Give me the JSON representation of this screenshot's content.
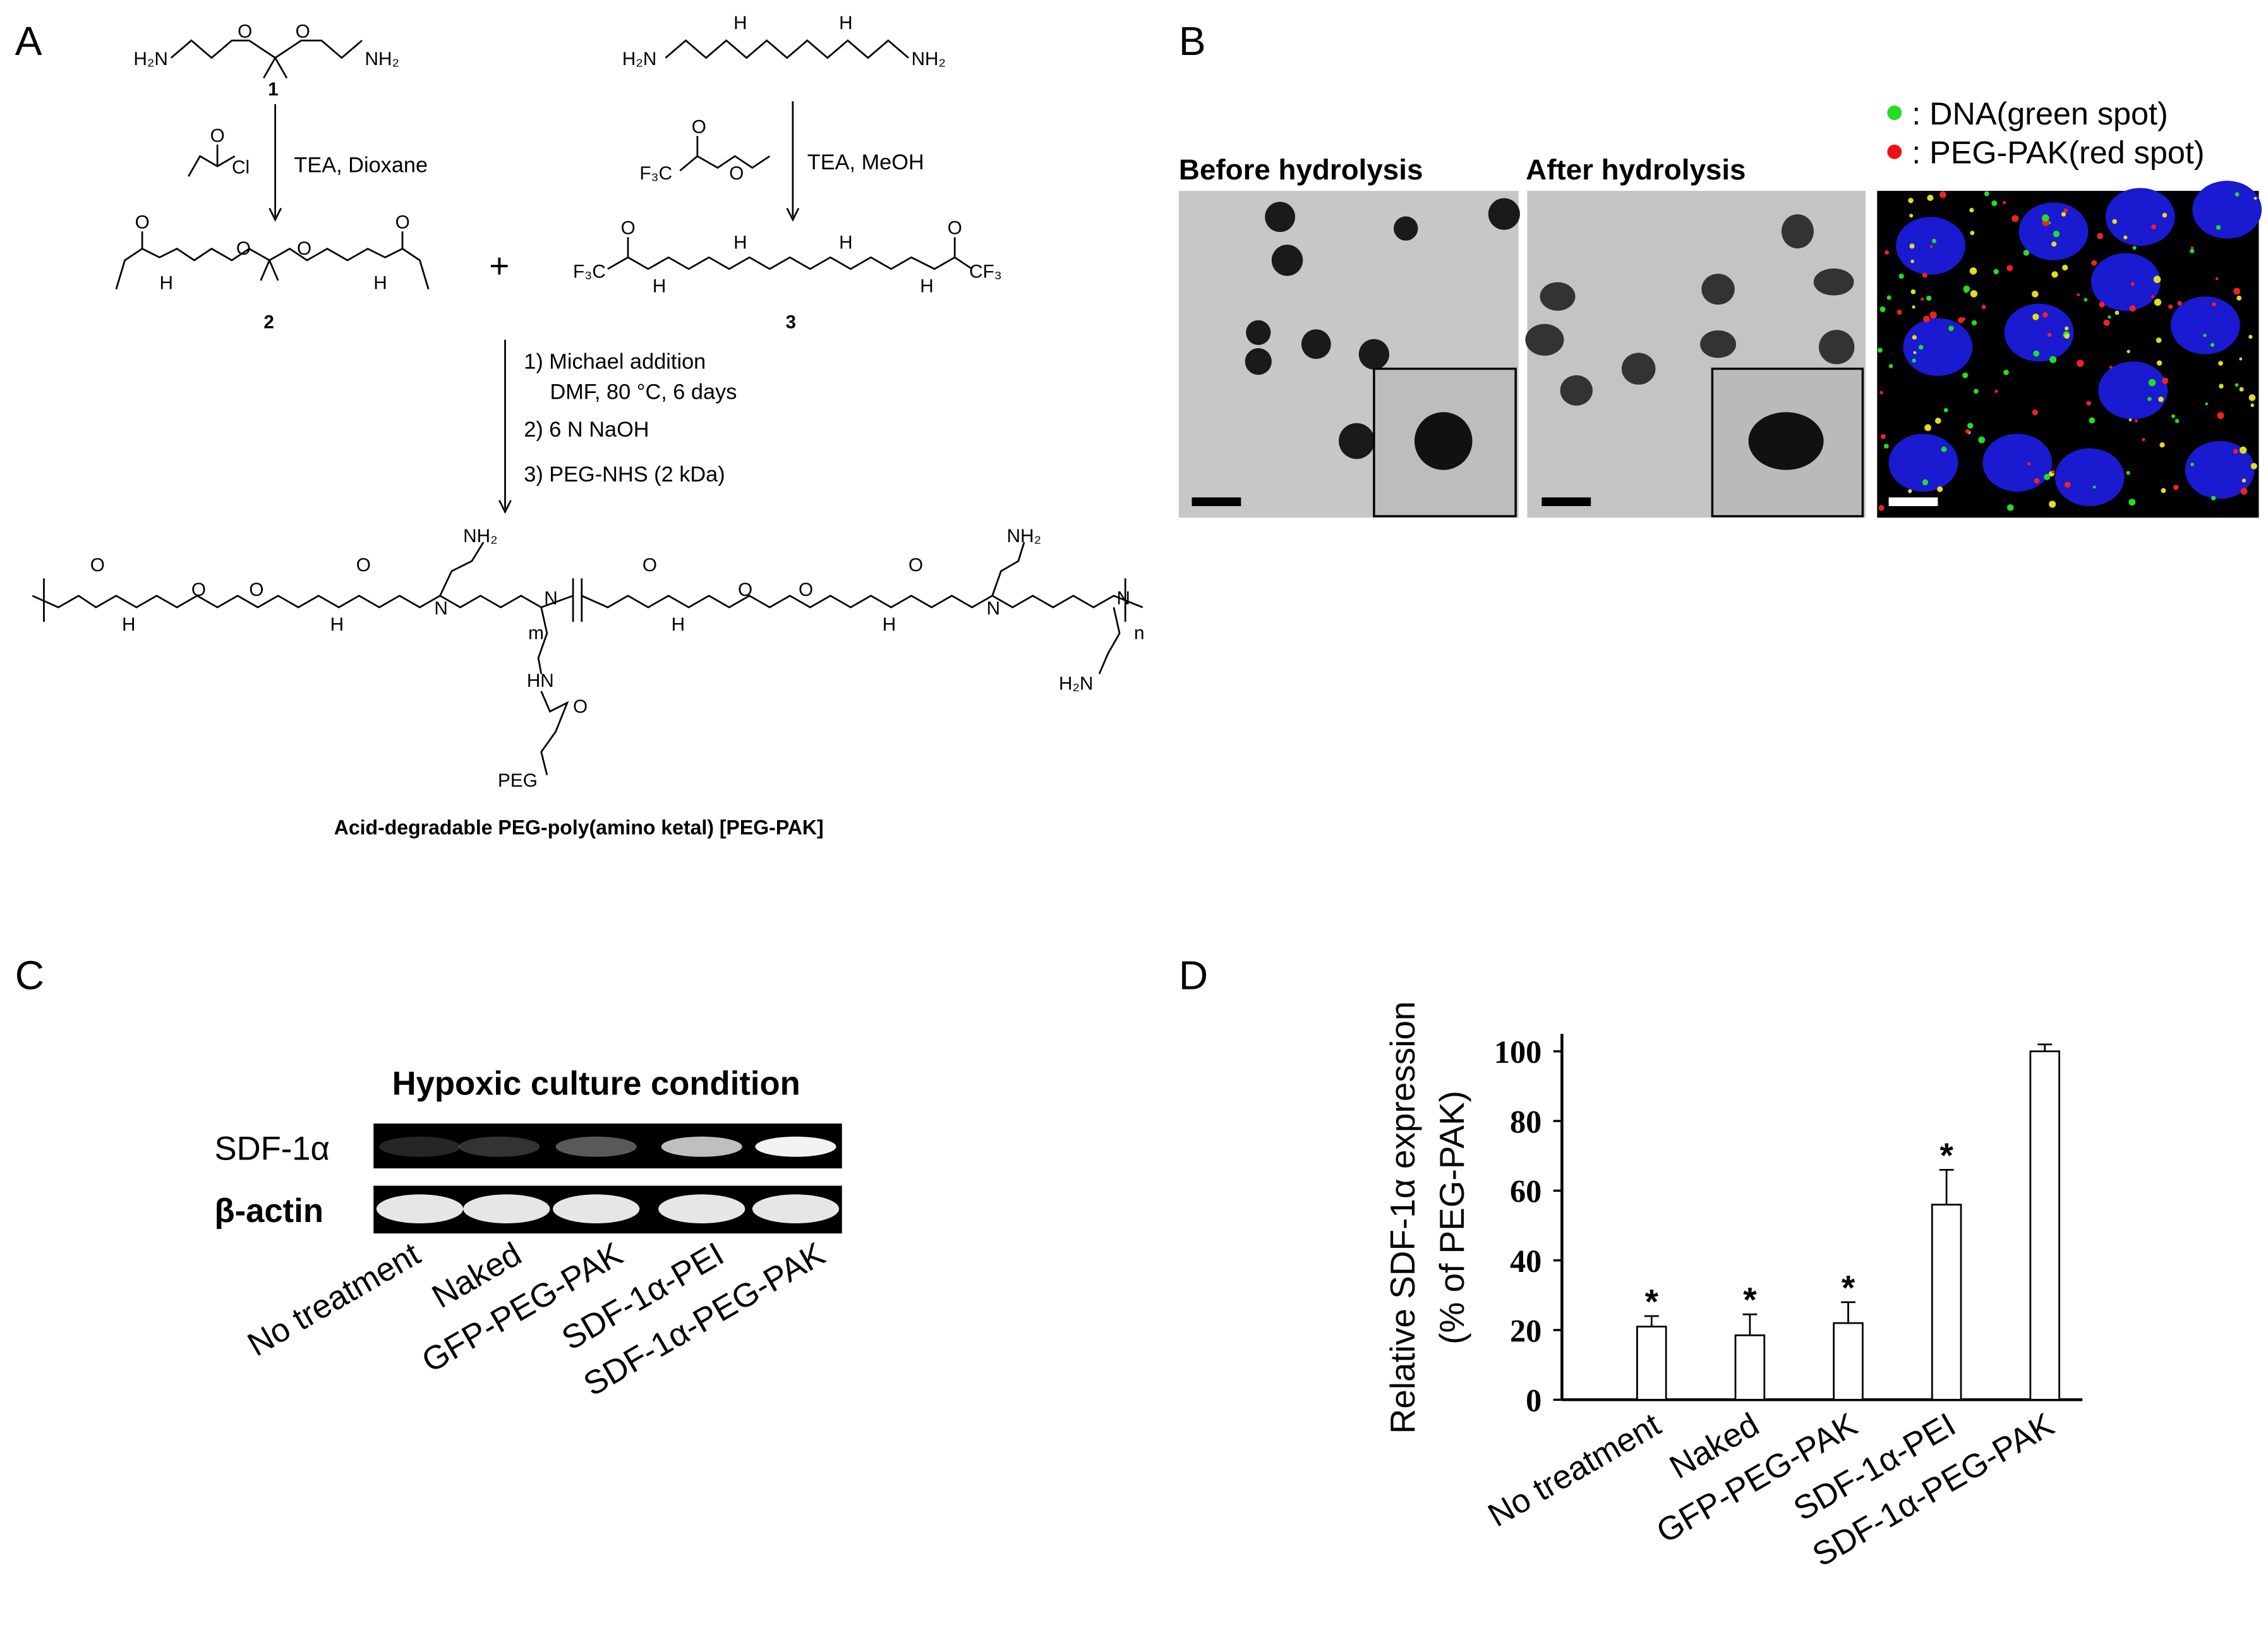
{
  "panel_labels": [
    "A",
    "B",
    "C",
    "D"
  ],
  "scheme": {
    "c1_left": "H₂N",
    "c1_right": "NH₂",
    "c1_o1": "O",
    "c1_o2": "O",
    "c1_num": "1",
    "acyl_cl": "Cl",
    "acyl_o": "O",
    "step1_reagents": "TEA, Dioxane",
    "c2_o1": "O",
    "c2_o2": "O",
    "c2_o3": "O",
    "c2_o4": "O",
    "c2_h1": "H",
    "c2_h2": "H",
    "c2_num": "2",
    "plus": "+",
    "amine_left": "H₂N",
    "amine_right": "NH₂",
    "amine_h1": "H",
    "amine_h2": "H",
    "tfa_f3c": "F₃C",
    "tfa_o1": "O",
    "tfa_o2": "O",
    "step2_reagents": "TEA, MeOH",
    "c3_f3c": "F₃C",
    "c3_cf3": "CF₃",
    "c3_o1": "O",
    "c3_o2": "O",
    "c3_h1": "H",
    "c3_h2": "H",
    "c3_h3": "H",
    "c3_h4": "H",
    "c3_num": "3",
    "steps": [
      "1) Michael addition",
      "DMF, 80 °C, 6 days",
      "2) 6 N NaOH",
      "3) PEG-NHS (2 kDa)"
    ],
    "poly_nh2_1": "NH₂",
    "poly_n1": "N",
    "poly_n2": "N",
    "poly_m": "m",
    "poly_hn": "HN",
    "poly_o_side": "O",
    "poly_peg": "PEG",
    "poly_nh2_2": "NH₂",
    "poly_n3": "N",
    "poly_n4": "N",
    "poly_h2n": "H₂N",
    "poly_n": "n",
    "poly_h": [
      "H",
      "H",
      "H",
      "H"
    ],
    "poly_o": [
      "O",
      "O",
      "O",
      "O",
      "O",
      "O",
      "O",
      "O"
    ],
    "product_name": "Acid-degradable PEG-poly(amino ketal) [PEG-PAK]"
  },
  "micrographs": {
    "before": "Before hydrolysis",
    "after": "After hydrolysis",
    "legend": [
      ": DNA(green spot)",
      ": PEG-PAK(red spot)"
    ],
    "legend_colors": [
      "#22dd22",
      "#ee1111"
    ]
  },
  "blot": {
    "title": "Hypoxic culture condition",
    "rows": [
      "SDF-1α",
      "β-actin"
    ],
    "lanes": [
      "No treatment",
      "Naked",
      "GFP-PEG-PAK",
      "SDF-1α-PEI",
      "SDF-1α-PEG-PAK"
    ]
  },
  "chart_data": {
    "type": "bar",
    "y_label": [
      "Relative SDF-1α expression",
      "(% of PEG-PAK)"
    ],
    "categories": [
      "No treatment",
      "Naked",
      "GFP-PEG-PAK",
      "SDF-1α-PEI",
      "SDF-1α-PEG-PAK"
    ],
    "values": [
      21,
      18.5,
      22,
      56,
      100
    ],
    "errors": [
      3,
      6,
      6,
      10,
      2
    ],
    "annotations": [
      "*",
      "*",
      "*",
      "*",
      null
    ],
    "color": "#ffffff",
    "ylim": [
      0,
      105
    ],
    "yticks": [
      0,
      20,
      40,
      60,
      80,
      100
    ]
  }
}
